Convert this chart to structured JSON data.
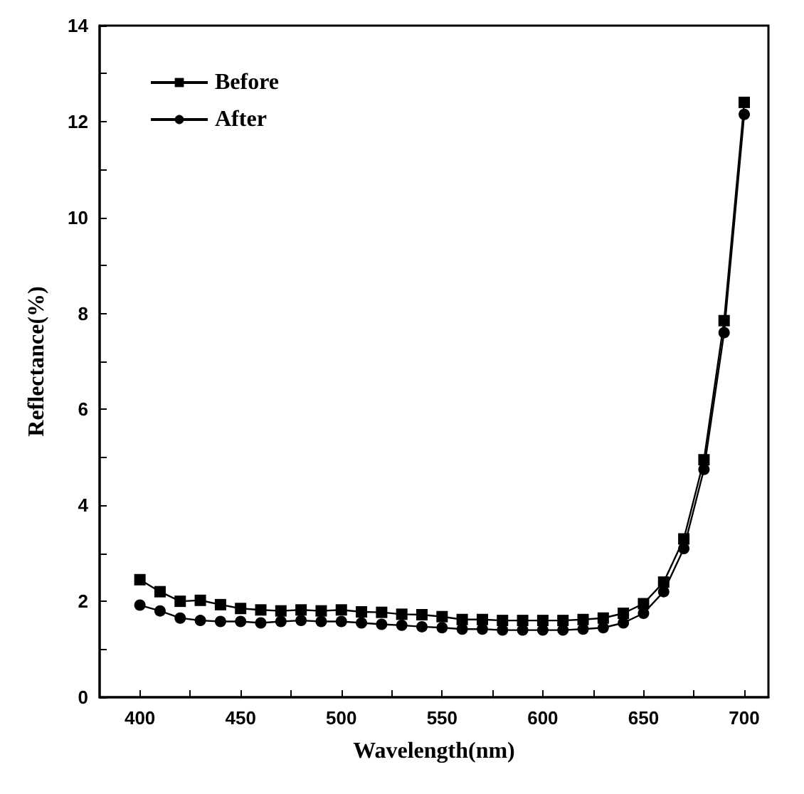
{
  "chart_data": {
    "type": "line",
    "xlabel": "Wavelength(nm)",
    "ylabel": "Reflectance(%)",
    "x": [
      400,
      410,
      420,
      430,
      440,
      450,
      460,
      470,
      480,
      490,
      500,
      510,
      520,
      530,
      540,
      550,
      560,
      570,
      580,
      590,
      600,
      610,
      620,
      630,
      640,
      650,
      660,
      670,
      680,
      690,
      700
    ],
    "series": [
      {
        "name": "Before",
        "color": "#000000",
        "marker": "square",
        "values": [
          2.45,
          2.2,
          2.0,
          2.02,
          1.93,
          1.85,
          1.82,
          1.8,
          1.82,
          1.8,
          1.82,
          1.78,
          1.77,
          1.73,
          1.72,
          1.68,
          1.62,
          1.62,
          1.6,
          1.6,
          1.6,
          1.6,
          1.62,
          1.65,
          1.75,
          1.95,
          2.4,
          3.3,
          4.95,
          7.85,
          12.4
        ]
      },
      {
        "name": "After",
        "color": "#000000",
        "marker": "circle",
        "values": [
          1.92,
          1.8,
          1.65,
          1.6,
          1.58,
          1.58,
          1.55,
          1.58,
          1.6,
          1.58,
          1.58,
          1.55,
          1.52,
          1.5,
          1.47,
          1.45,
          1.42,
          1.42,
          1.4,
          1.4,
          1.4,
          1.4,
          1.42,
          1.45,
          1.55,
          1.75,
          2.2,
          3.1,
          4.75,
          7.6,
          12.15
        ]
      }
    ],
    "xlim": [
      380,
      712
    ],
    "xticks": [
      400,
      {
        "value": 425,
        "label": null
      },
      450,
      {
        "value": 475,
        "label": null
      },
      500,
      {
        "value": 525,
        "label": null
      },
      550,
      {
        "value": 575,
        "label": null
      },
      600,
      {
        "value": 625,
        "label": null
      },
      650,
      {
        "value": 675,
        "label": null
      },
      700
    ],
    "ylim": [
      0,
      14
    ],
    "yticks": [
      0,
      {
        "value": 1,
        "label": null
      },
      2,
      {
        "value": 3,
        "label": null
      },
      4,
      {
        "value": 5,
        "label": null
      },
      6,
      {
        "value": 7,
        "label": null
      },
      8,
      {
        "value": 9,
        "label": null
      },
      10,
      {
        "value": 11,
        "label": null
      },
      12,
      {
        "value": 13,
        "label": null
      },
      14
    ],
    "grid": false,
    "legend": "top left",
    "line_style": "solid"
  }
}
